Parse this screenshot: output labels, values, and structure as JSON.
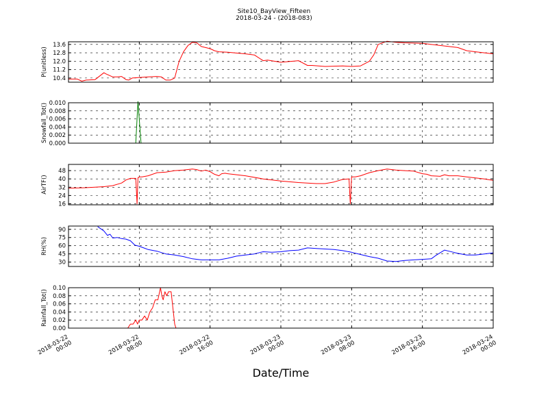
{
  "title_line1": "Site10_BayView_Fifteen",
  "title_line2": "2018-03-24 - (2018-083)",
  "xlabel": "Date/Time",
  "chart_data": {
    "type": "line",
    "x_ticks": [
      "2018-03-22 00:00",
      "2018-03-22 08:00",
      "2018-03-22 16:00",
      "2018-03-23 00:00",
      "2018-03-23 08:00",
      "2018-03-23 16:00",
      "2018-03-24 00:00"
    ],
    "x_tick_lines": [
      [
        "2018-03-22",
        "00:00"
      ],
      [
        "2018-03-22",
        "08:00"
      ],
      [
        "2018-03-22",
        "16:00"
      ],
      [
        "2018-03-23",
        "00:00"
      ],
      [
        "2018-03-23",
        "08:00"
      ],
      [
        "2018-03-23",
        "16:00"
      ],
      [
        "2018-03-24",
        "00:00"
      ]
    ],
    "xlim_hours": [
      0,
      48
    ],
    "panels": [
      {
        "ylabel": "P(unitless)",
        "ylim": [
          10.0,
          13.85
        ],
        "yticks": [
          10.4,
          11.2,
          12.0,
          12.8,
          13.6
        ],
        "ytick_labels": [
          "10.4",
          "11.2",
          "12.0",
          "12.8",
          "13.6"
        ],
        "color": "#ff0000",
        "x": [
          0,
          1,
          1.5,
          2,
          3,
          4,
          4.2,
          5,
          5.5,
          6,
          6.5,
          6.8,
          7.2,
          8,
          9,
          10,
          10.5,
          11,
          11.5,
          12,
          12.5,
          13,
          13.5,
          14,
          14.5,
          15,
          16,
          16.5,
          17,
          18,
          20,
          21,
          22,
          22.5,
          24,
          26,
          27,
          27.5,
          29,
          31,
          32,
          33,
          34,
          34.5,
          35,
          36,
          36.5,
          37,
          38,
          40,
          42,
          44,
          45,
          46,
          47,
          48
        ],
        "y": [
          10.3,
          10.3,
          10.1,
          10.2,
          10.25,
          10.9,
          10.8,
          10.5,
          10.5,
          10.55,
          10.25,
          10.2,
          10.4,
          10.45,
          10.5,
          10.55,
          10.5,
          10.2,
          10.2,
          10.4,
          12.0,
          12.9,
          13.5,
          13.8,
          13.75,
          13.4,
          13.2,
          13.0,
          12.9,
          12.85,
          12.7,
          12.6,
          12.05,
          12.1,
          11.9,
          12.05,
          11.6,
          11.6,
          11.5,
          11.55,
          11.5,
          11.55,
          12.0,
          12.6,
          13.6,
          13.9,
          13.85,
          13.8,
          13.75,
          13.7,
          13.5,
          13.3,
          13.0,
          12.9,
          12.8,
          12.7
        ]
      },
      {
        "ylabel": "Snowfall_Tot()",
        "ylim": [
          0.0,
          0.01
        ],
        "yticks": [
          0.0,
          0.002,
          0.004,
          0.006,
          0.008,
          0.01
        ],
        "ytick_labels": [
          "0.000",
          "0.002",
          "0.004",
          "0.006",
          "0.008",
          "0.010"
        ],
        "color": "#007f00",
        "x": [
          0,
          7.6,
          7.85,
          8.2,
          48
        ],
        "y": [
          0,
          0,
          0.0103,
          0,
          0
        ]
      },
      {
        "ylabel": "AirTF()",
        "ylim": [
          15,
          54
        ],
        "yticks": [
          16,
          24,
          32,
          40,
          48
        ],
        "ytick_labels": [
          "16",
          "24",
          "32",
          "40",
          "48"
        ],
        "color": "#ff0000",
        "x": [
          0,
          2,
          3,
          4,
          5,
          6,
          6.5,
          7,
          7.6,
          7.75,
          7.85,
          8.0,
          8.3,
          9,
          10,
          11,
          12,
          13,
          14,
          14.5,
          15,
          15.5,
          16,
          16.5,
          17,
          17.3,
          17.7,
          18,
          20,
          22,
          24,
          26,
          28,
          29,
          30,
          31,
          31.7,
          31.85,
          32.0,
          32.4,
          33,
          34,
          35,
          36,
          37,
          38,
          39,
          40,
          40.5,
          41,
          42,
          42.5,
          43,
          44,
          45,
          46,
          47,
          48
        ],
        "y": [
          31,
          31.5,
          32,
          32.5,
          33.5,
          36,
          39,
          40.5,
          40.5,
          16,
          41,
          42,
          42,
          43,
          46,
          46.5,
          48,
          48.5,
          49.5,
          49,
          47.5,
          48.5,
          47,
          44.5,
          43,
          45,
          45.5,
          45,
          43,
          40,
          38,
          36.5,
          35.5,
          35.5,
          37,
          39.5,
          40,
          16,
          42,
          42,
          43,
          46,
          48,
          49.5,
          48.5,
          48,
          47.5,
          45,
          44.5,
          43,
          42.5,
          44,
          43,
          43,
          42,
          41,
          40,
          38.5
        ]
      },
      {
        "ylabel": "RH(%)",
        "ylim": [
          22,
          96
        ],
        "yticks": [
          30,
          45,
          60,
          75,
          90
        ],
        "ytick_labels": [
          "30",
          "45",
          "60",
          "75",
          "90"
        ],
        "color": "#0000ff",
        "x": [
          3.3,
          4,
          4.4,
          4.7,
          5,
          5.5,
          6,
          6.5,
          7,
          7.5,
          8,
          8.5,
          9,
          10,
          11,
          12,
          13,
          14,
          15,
          16,
          17,
          18,
          19,
          20,
          21,
          22,
          23,
          24,
          25,
          26,
          27,
          28,
          29,
          30,
          31,
          32,
          33,
          34,
          35,
          36,
          37,
          38,
          39,
          40,
          41,
          41.5,
          42,
          42.5,
          43,
          44,
          45,
          46,
          47,
          48
        ],
        "y": [
          95,
          87,
          79,
          81,
          74,
          75,
          73,
          72,
          69,
          61,
          59,
          56,
          53,
          50,
          45,
          43,
          40,
          36,
          34,
          34,
          34,
          37,
          41,
          43,
          45,
          49,
          48,
          49,
          51,
          52,
          56,
          55,
          54,
          53,
          51,
          48,
          44,
          40,
          37,
          32,
          31,
          33,
          34,
          35,
          36,
          42,
          47,
          52,
          50,
          46,
          43,
          43,
          45,
          47
        ]
      },
      {
        "ylabel": "Rainfall_Tot()",
        "ylim": [
          0.0,
          0.1
        ],
        "yticks": [
          0.0,
          0.02,
          0.04,
          0.06,
          0.08,
          0.1
        ],
        "ytick_labels": [
          "0.00",
          "0.02",
          "0.04",
          "0.06",
          "0.08",
          "0.10"
        ],
        "color": "#ff0000",
        "x": [
          0,
          6.7,
          7.0,
          7.3,
          7.6,
          7.8,
          8.0,
          8.3,
          8.6,
          8.9,
          9.2,
          9.5,
          9.8,
          10.1,
          10.4,
          10.55,
          10.7,
          10.9,
          11.1,
          11.3,
          11.6,
          11.8,
          12.0,
          12.15,
          48
        ],
        "y": [
          0,
          0,
          0.01,
          0.01,
          0.02,
          0.01,
          0.02,
          0.02,
          0.03,
          0.02,
          0.04,
          0.05,
          0.07,
          0.07,
          0.1,
          0.08,
          0.07,
          0.09,
          0.08,
          0.09,
          0.09,
          0.05,
          0.01,
          0,
          0
        ]
      }
    ]
  }
}
